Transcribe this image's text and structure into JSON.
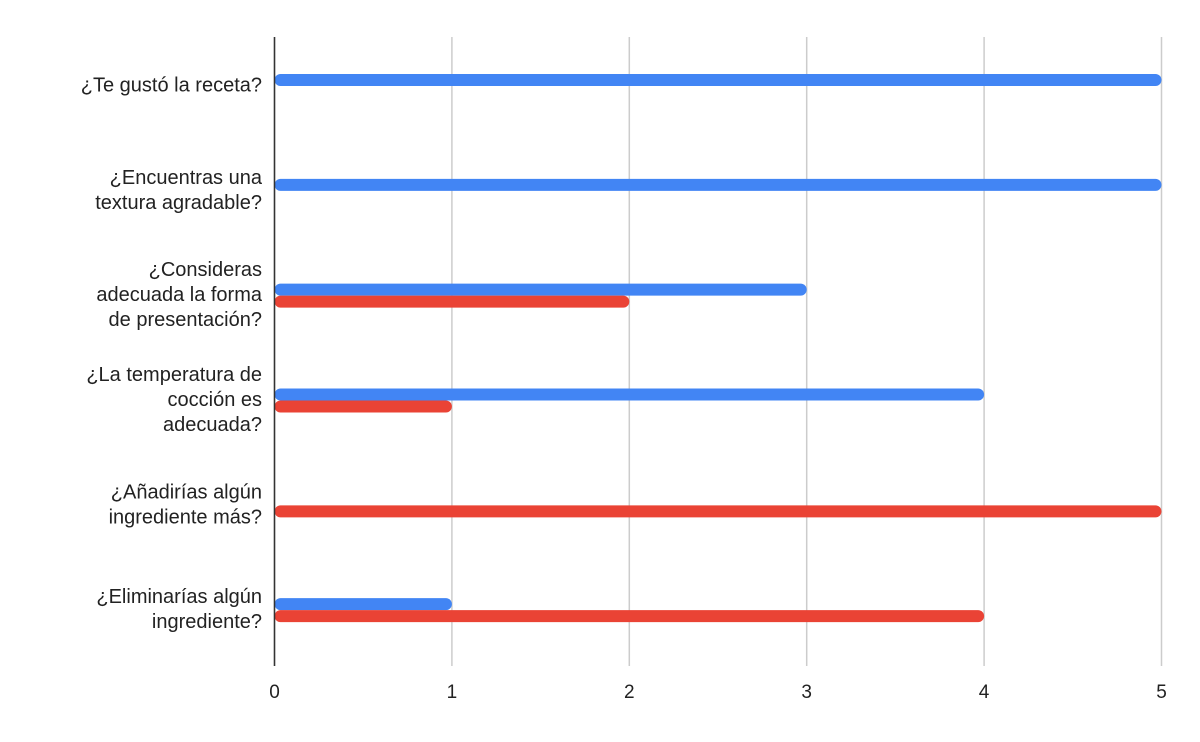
{
  "chart_data": {
    "type": "bar",
    "orientation": "horizontal",
    "categories": [
      "¿Te gustó la receta?",
      "¿Encuentras una textura agradable?",
      "¿Consideras adecuada la forma de presentación?",
      "¿La temperatura de cocción es adecuada?",
      "¿Añadirías algún ingrediente más?",
      "¿Eliminarías algún ingrediente?"
    ],
    "category_label_lines": [
      [
        "¿Te gustó la receta?"
      ],
      [
        "¿Encuentras una",
        "textura agradable?"
      ],
      [
        "¿Consideras",
        "adecuada la forma",
        "de presentación?"
      ],
      [
        "¿La temperatura de",
        "cocción es",
        "adecuada?"
      ],
      [
        "¿Añadirías algún",
        "ingrediente más?"
      ],
      [
        "¿Eliminarías algún",
        "ingrediente?"
      ]
    ],
    "series": [
      {
        "values": [
          5,
          5,
          3,
          4,
          0,
          1
        ],
        "color": "#4285f4"
      },
      {
        "values": [
          0,
          0,
          2,
          1,
          5,
          4
        ],
        "color": "#ea4335"
      }
    ],
    "x_ticks": [
      "0",
      "1",
      "2",
      "3",
      "4",
      "5"
    ],
    "xlim": [
      0,
      5
    ],
    "xlabel": "",
    "ylabel": "",
    "title": "",
    "grid": "vertical",
    "legend": "none",
    "colors": {
      "grid": "#cccccc",
      "axis": "#333333",
      "text": "#222222"
    }
  }
}
